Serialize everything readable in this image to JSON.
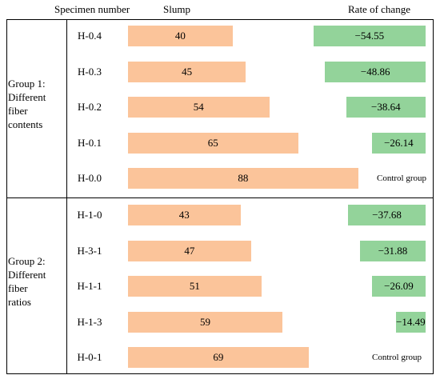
{
  "headers": {
    "specimen": "Specimen number",
    "slump": "Slump",
    "rate": "Rate of change"
  },
  "groups": [
    {
      "label_lines": [
        "Group 1:",
        "Different",
        "fiber",
        "contents"
      ],
      "rows": [
        {
          "specimen": "H-0.4",
          "slump": 40,
          "slump_label": "40",
          "rate": -54.55,
          "rate_label": "−54.55"
        },
        {
          "specimen": "H-0.3",
          "slump": 45,
          "slump_label": "45",
          "rate": -48.86,
          "rate_label": "−48.86"
        },
        {
          "specimen": "H-0.2",
          "slump": 54,
          "slump_label": "54",
          "rate": -38.64,
          "rate_label": "−38.64"
        },
        {
          "specimen": "H-0.1",
          "slump": 65,
          "slump_label": "65",
          "rate": -26.14,
          "rate_label": "−26.14"
        },
        {
          "specimen": "H-0.0",
          "slump": 88,
          "slump_label": "88",
          "rate": null,
          "rate_label": "Control group"
        }
      ]
    },
    {
      "label_lines": [
        "Group 2:",
        "Different",
        "fiber",
        "ratios"
      ],
      "rows": [
        {
          "specimen": "H-1-0",
          "slump": 43,
          "slump_label": "43",
          "rate": -37.68,
          "rate_label": "−37.68"
        },
        {
          "specimen": "H-3-1",
          "slump": 47,
          "slump_label": "47",
          "rate": -31.88,
          "rate_label": "−31.88"
        },
        {
          "specimen": "H-1-1",
          "slump": 51,
          "slump_label": "51",
          "rate": -26.09,
          "rate_label": "−26.09"
        },
        {
          "specimen": "H-1-3",
          "slump": 59,
          "slump_label": "59",
          "rate": -14.49,
          "rate_label": "−14.49"
        },
        {
          "specimen": "H-0-1",
          "slump": 69,
          "slump_label": "69",
          "rate": null,
          "rate_label": "Control group"
        }
      ]
    }
  ],
  "colors": {
    "slump_bar": "#fbc49a",
    "rate_bar": "#93d39a"
  },
  "chart_data": {
    "type": "bar",
    "categories": [
      "H-0.4",
      "H-0.3",
      "H-0.2",
      "H-0.1",
      "H-0.0",
      "H-1-0",
      "H-3-1",
      "H-1-1",
      "H-1-3",
      "H-0-1"
    ],
    "series": [
      {
        "name": "Slump",
        "values": [
          40,
          45,
          54,
          65,
          88,
          43,
          47,
          51,
          59,
          69
        ]
      },
      {
        "name": "Rate of change",
        "values": [
          -54.55,
          -48.86,
          -38.64,
          -26.14,
          null,
          -37.68,
          -31.88,
          -26.09,
          -14.49,
          null
        ]
      }
    ],
    "xlabel": "",
    "ylabel": "",
    "legend": "none",
    "grid": false
  }
}
